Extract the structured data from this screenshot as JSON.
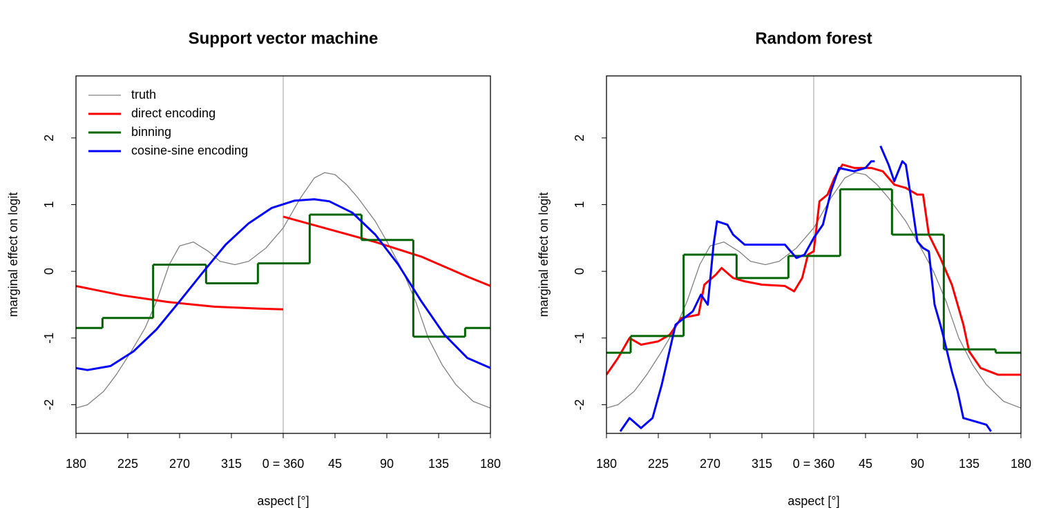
{
  "chart_data": [
    {
      "type": "line",
      "title": "Support vector machine",
      "xlabel": "aspect [°]",
      "ylabel": "marginal effect on logit",
      "xlim": [
        180,
        540
      ],
      "ylim": [
        -2.43,
        2.93
      ],
      "xticks": [
        180,
        225,
        270,
        315,
        {
          "value": 360,
          "label": "0 = 360"
        },
        {
          "value": 405,
          "label": "45"
        },
        {
          "value": 450,
          "label": "90"
        },
        {
          "value": 495,
          "label": "135"
        },
        {
          "value": 540,
          "label": "180"
        }
      ],
      "yticks": [
        -2,
        -1,
        0,
        1,
        2
      ],
      "vline": 360,
      "vline_color": "#bebebe",
      "legend": "topleft",
      "series": [
        {
          "name": "truth",
          "color": "#808080",
          "line_width": 1.3,
          "x": [
            180,
            190,
            204,
            215,
            228,
            240,
            250,
            261,
            270,
            282,
            295,
            305,
            318,
            330,
            345,
            360,
            375,
            387,
            396,
            405,
            415,
            425,
            440,
            450,
            464,
            475,
            486,
            498,
            510,
            525,
            540
          ],
          "values": [
            -2.05,
            -2.0,
            -1.8,
            -1.55,
            -1.2,
            -0.85,
            -0.45,
            0.1,
            0.38,
            0.44,
            0.3,
            0.15,
            0.1,
            0.15,
            0.35,
            0.65,
            1.1,
            1.4,
            1.48,
            1.45,
            1.3,
            1.1,
            0.75,
            0.45,
            0,
            -0.45,
            -1.0,
            -1.4,
            -1.7,
            -1.95,
            -2.05
          ]
        },
        {
          "name": "direct encoding",
          "color": "#ff0000",
          "line_width": 3,
          "x": [
            180,
            220,
            260,
            300,
            340,
            360,
            360,
            360,
            400,
            440,
            480,
            520,
            540
          ],
          "values": [
            -0.22,
            -0.36,
            -0.46,
            -0.53,
            -0.56,
            -0.57,
            null,
            0.82,
            0.63,
            0.44,
            0.22,
            -0.08,
            -0.22
          ]
        },
        {
          "name": "binning",
          "color": "#006400",
          "line_width": 3,
          "edges": [
            180,
            203,
            247,
            293,
            338,
            383,
            428,
            473,
            518,
            540
          ],
          "values": [
            -0.85,
            -0.7,
            0.1,
            -0.18,
            0.12,
            0.85,
            0.47,
            -0.98,
            -0.85
          ]
        },
        {
          "name": "cosine-sine encoding",
          "color": "#0000ff",
          "line_width": 3,
          "x": [
            180,
            190,
            210,
            230,
            250,
            270,
            290,
            310,
            330,
            350,
            370,
            387,
            400,
            420,
            440,
            460,
            480,
            500,
            520,
            540
          ],
          "values": [
            -1.45,
            -1.48,
            -1.42,
            -1.2,
            -0.87,
            -0.45,
            -0.02,
            0.4,
            0.72,
            0.95,
            1.06,
            1.08,
            1.05,
            0.88,
            0.55,
            0.1,
            -0.45,
            -0.95,
            -1.3,
            -1.45
          ]
        }
      ]
    },
    {
      "type": "line",
      "title": "Random forest",
      "xlabel": "aspect [°]",
      "ylabel": "marginal effect on logit",
      "xlim": [
        180,
        540
      ],
      "ylim": [
        -2.43,
        2.93
      ],
      "xticks": [
        180,
        225,
        270,
        315,
        {
          "value": 360,
          "label": "0 = 360"
        },
        {
          "value": 405,
          "label": "45"
        },
        {
          "value": 450,
          "label": "90"
        },
        {
          "value": 495,
          "label": "135"
        },
        {
          "value": 540,
          "label": "180"
        }
      ],
      "yticks": [
        -2,
        -1,
        0,
        1,
        2
      ],
      "vline": 360,
      "vline_color": "#bebebe",
      "series": [
        {
          "color": "#808080",
          "line_width": 1.3,
          "x": [
            180,
            190,
            204,
            215,
            228,
            240,
            250,
            261,
            270,
            282,
            295,
            305,
            318,
            330,
            345,
            360,
            375,
            387,
            396,
            405,
            415,
            425,
            440,
            450,
            464,
            475,
            486,
            498,
            510,
            525,
            540
          ],
          "values": [
            -2.05,
            -2.0,
            -1.8,
            -1.55,
            -1.2,
            -0.85,
            -0.45,
            0.1,
            0.38,
            0.44,
            0.3,
            0.15,
            0.1,
            0.15,
            0.35,
            0.65,
            1.1,
            1.4,
            1.48,
            1.45,
            1.3,
            1.1,
            0.75,
            0.45,
            0,
            -0.45,
            -1.0,
            -1.4,
            -1.7,
            -1.95,
            -2.05
          ]
        },
        {
          "color": "#ff0000",
          "line_width": 3,
          "x": [
            180,
            190,
            200,
            210,
            225,
            235,
            245,
            260,
            265,
            275,
            280,
            290,
            300,
            315,
            335,
            343,
            350,
            355,
            360,
            365,
            372,
            378,
            385,
            395,
            410,
            420,
            430,
            440,
            450,
            455,
            460,
            470,
            480,
            490,
            495,
            505,
            520,
            540
          ],
          "values": [
            -1.55,
            -1.3,
            -1.0,
            -1.1,
            -1.05,
            -0.95,
            -0.7,
            -0.65,
            -0.2,
            -0.05,
            0.05,
            -0.1,
            -0.15,
            -0.2,
            -0.22,
            -0.3,
            -0.1,
            0.25,
            0.3,
            1.05,
            1.15,
            1.4,
            1.6,
            1.55,
            1.55,
            1.5,
            1.3,
            1.25,
            1.15,
            1.15,
            0.55,
            0.2,
            -0.2,
            -0.8,
            -1.2,
            -1.45,
            -1.55,
            -1.55
          ]
        },
        {
          "color": "#006400",
          "line_width": 3,
          "edges": [
            180,
            201,
            247,
            293,
            338,
            383,
            428,
            473,
            518,
            540
          ],
          "values": [
            -1.22,
            -0.97,
            0.25,
            -0.1,
            0.23,
            1.23,
            0.55,
            -1.17,
            -1.22
          ]
        },
        {
          "color": "#0000ff",
          "line_width": 3,
          "x": [
            192,
            200,
            210,
            220,
            228,
            240,
            255,
            262,
            268,
            273,
            276,
            285,
            290,
            300,
            320,
            335,
            345,
            352,
            360,
            368,
            375,
            382,
            395,
            405,
            410,
            413,
            415,
            418,
            425,
            430,
            437,
            440,
            445,
            450,
            455,
            460,
            465,
            470,
            473,
            480,
            485,
            490,
            500,
            510,
            514
          ],
          "values": [
            -2.4,
            -2.2,
            -2.35,
            -2.2,
            -1.7,
            -0.8,
            -0.6,
            -0.35,
            -0.5,
            0.4,
            0.75,
            0.7,
            0.55,
            0.4,
            0.4,
            0.4,
            0.2,
            0.25,
            0.5,
            0.7,
            1.2,
            1.55,
            1.5,
            1.55,
            1.65,
            1.65,
            null,
            1.88,
            1.6,
            1.35,
            1.65,
            1.6,
            1.05,
            0.45,
            0.35,
            0.3,
            -0.5,
            -0.8,
            -1.0,
            -1.5,
            -1.8,
            -2.2,
            -2.25,
            -2.3,
            -2.4
          ]
        }
      ]
    }
  ]
}
